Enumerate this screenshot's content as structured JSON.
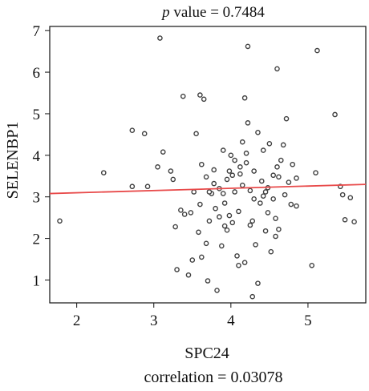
{
  "chart_data": {
    "type": "scatter",
    "title": "p value = 0.7484",
    "title_prefix": "p",
    "title_rest": " value = 0.7484",
    "xlabel": "SPC24",
    "ylabel": "SELENBP1",
    "footer": "correlation = 0.03078",
    "xlim": [
      1.65,
      5.75
    ],
    "ylim": [
      0.45,
      7.1
    ],
    "x_ticks": [
      2,
      3,
      4,
      5
    ],
    "y_ticks": [
      1,
      2,
      3,
      4,
      5,
      6,
      7
    ],
    "grid": false,
    "point_color": "#404040",
    "line_color": "#e84a4a",
    "trend_line": {
      "x": [
        1.65,
        5.75
      ],
      "y": [
        3.08,
        3.3
      ]
    },
    "points": [
      [
        1.78,
        2.42
      ],
      [
        2.35,
        3.58
      ],
      [
        2.72,
        4.6
      ],
      [
        2.72,
        3.25
      ],
      [
        2.88,
        4.52
      ],
      [
        2.92,
        3.25
      ],
      [
        3.05,
        3.72
      ],
      [
        3.08,
        6.82
      ],
      [
        3.12,
        4.08
      ],
      [
        3.22,
        3.62
      ],
      [
        3.25,
        3.42
      ],
      [
        3.28,
        2.28
      ],
      [
        3.3,
        1.25
      ],
      [
        3.35,
        2.68
      ],
      [
        3.38,
        5.42
      ],
      [
        3.4,
        2.58
      ],
      [
        3.45,
        1.12
      ],
      [
        3.48,
        2.62
      ],
      [
        3.5,
        1.48
      ],
      [
        3.52,
        3.12
      ],
      [
        3.55,
        4.52
      ],
      [
        3.58,
        2.15
      ],
      [
        3.6,
        5.45
      ],
      [
        3.62,
        1.55
      ],
      [
        3.62,
        3.78
      ],
      [
        3.65,
        5.35
      ],
      [
        3.68,
        1.88
      ],
      [
        3.7,
        0.98
      ],
      [
        3.72,
        2.42
      ],
      [
        3.75,
        3.08
      ],
      [
        3.78,
        3.32
      ],
      [
        3.8,
        2.72
      ],
      [
        3.82,
        0.75
      ],
      [
        3.85,
        2.52
      ],
      [
        3.88,
        1.82
      ],
      [
        3.9,
        4.12
      ],
      [
        3.92,
        2.85
      ],
      [
        3.95,
        2.2
      ],
      [
        3.98,
        3.62
      ],
      [
        4.0,
        4.0
      ],
      [
        4.02,
        2.38
      ],
      [
        4.05,
        3.12
      ],
      [
        4.08,
        1.58
      ],
      [
        4.1,
        2.65
      ],
      [
        4.12,
        3.55
      ],
      [
        4.15,
        4.32
      ],
      [
        4.18,
        1.42
      ],
      [
        4.2,
        3.82
      ],
      [
        4.22,
        4.78
      ],
      [
        4.25,
        2.32
      ],
      [
        4.28,
        0.6
      ],
      [
        4.3,
        3.62
      ],
      [
        4.32,
        1.85
      ],
      [
        4.35,
        0.92
      ],
      [
        4.38,
        2.85
      ],
      [
        4.4,
        3.38
      ],
      [
        4.42,
        4.12
      ],
      [
        4.45,
        2.18
      ],
      [
        4.48,
        3.22
      ],
      [
        4.5,
        4.28
      ],
      [
        4.52,
        1.68
      ],
      [
        4.55,
        3.52
      ],
      [
        4.58,
        2.48
      ],
      [
        4.6,
        6.08
      ],
      [
        4.62,
        2.22
      ],
      [
        4.65,
        3.88
      ],
      [
        4.68,
        4.25
      ],
      [
        4.7,
        3.05
      ],
      [
        4.72,
        4.88
      ],
      [
        4.75,
        3.35
      ],
      [
        4.78,
        2.82
      ],
      [
        4.8,
        3.78
      ],
      [
        4.85,
        2.78
      ],
      [
        5.05,
        1.35
      ],
      [
        5.1,
        3.58
      ],
      [
        5.12,
        6.52
      ],
      [
        5.35,
        4.98
      ],
      [
        5.42,
        3.25
      ],
      [
        5.48,
        2.45
      ],
      [
        5.55,
        2.98
      ],
      [
        5.6,
        2.4
      ],
      [
        3.68,
        3.48
      ],
      [
        4.18,
        5.38
      ],
      [
        4.22,
        6.62
      ],
      [
        3.9,
        3.08
      ],
      [
        4.05,
        3.88
      ],
      [
        4.12,
        3.72
      ],
      [
        4.25,
        3.15
      ],
      [
        4.3,
        2.95
      ],
      [
        4.48,
        2.62
      ],
      [
        4.62,
        3.48
      ],
      [
        3.95,
        3.42
      ],
      [
        3.72,
        3.12
      ],
      [
        4.58,
        2.05
      ],
      [
        4.15,
        3.28
      ],
      [
        3.85,
        3.2
      ],
      [
        4.42,
        3.02
      ],
      [
        4.35,
        4.55
      ],
      [
        3.6,
        2.82
      ],
      [
        4.02,
        3.52
      ],
      [
        4.45,
        3.12
      ],
      [
        3.98,
        2.55
      ],
      [
        4.2,
        4.05
      ],
      [
        4.55,
        2.95
      ],
      [
        3.78,
        3.65
      ],
      [
        4.1,
        1.35
      ],
      [
        3.92,
        2.3
      ],
      [
        4.28,
        2.42
      ],
      [
        4.85,
        3.45
      ],
      [
        4.6,
        3.72
      ],
      [
        5.45,
        3.05
      ]
    ]
  }
}
